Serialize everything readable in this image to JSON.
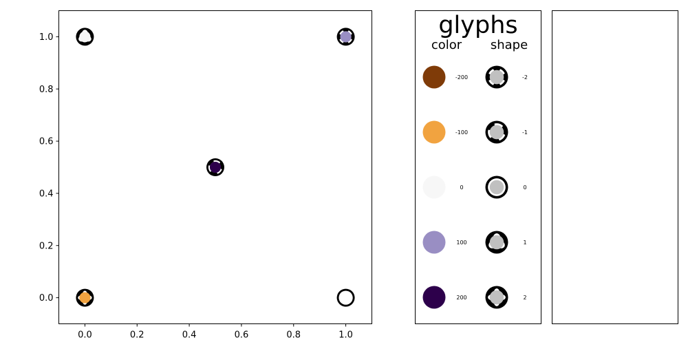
{
  "chart_data": {
    "type": "scatter",
    "xlim": [
      -0.1,
      1.1
    ],
    "ylim": [
      -0.1,
      1.1
    ],
    "x_ticks": [
      "0.0",
      "0.2",
      "0.4",
      "0.6",
      "0.8",
      "1.0"
    ],
    "y_ticks": [
      "0.0",
      "0.2",
      "0.4",
      "0.6",
      "0.8",
      "1.0"
    ],
    "grid": false,
    "points": [
      {
        "x": 0.0,
        "y": 1.0,
        "color": 0,
        "shape": 1
      },
      {
        "x": 1.0,
        "y": 1.0,
        "color": 100,
        "shape": -2
      },
      {
        "x": 0.5,
        "y": 0.5,
        "color": 200,
        "shape": -1
      },
      {
        "x": 0.0,
        "y": 0.0,
        "color": -100,
        "shape": 2
      },
      {
        "x": 1.0,
        "y": 0.0,
        "color": null,
        "shape": 0
      }
    ],
    "legend": {
      "title": "glyphs",
      "color_header": "color",
      "shape_header": "shape",
      "color_entries": [
        {
          "label": "-200",
          "value": -200,
          "hex": "#7f3b08"
        },
        {
          "label": "-100",
          "value": -100,
          "hex": "#f1a340"
        },
        {
          "label": "0",
          "value": 0,
          "hex": "#f7f7f7"
        },
        {
          "label": "100",
          "value": 100,
          "hex": "#998ec3"
        },
        {
          "label": "200",
          "value": 200,
          "hex": "#2d004b"
        }
      ],
      "shape_entries": [
        {
          "label": "-2",
          "value": -2
        },
        {
          "label": "-1",
          "value": -1
        },
        {
          "label": "0",
          "value": 0
        },
        {
          "label": "1",
          "value": 1
        },
        {
          "label": "2",
          "value": 2
        }
      ]
    }
  },
  "colors": {
    "ring": "#000000",
    "legend_shape_fill": "#c0c0c0"
  }
}
